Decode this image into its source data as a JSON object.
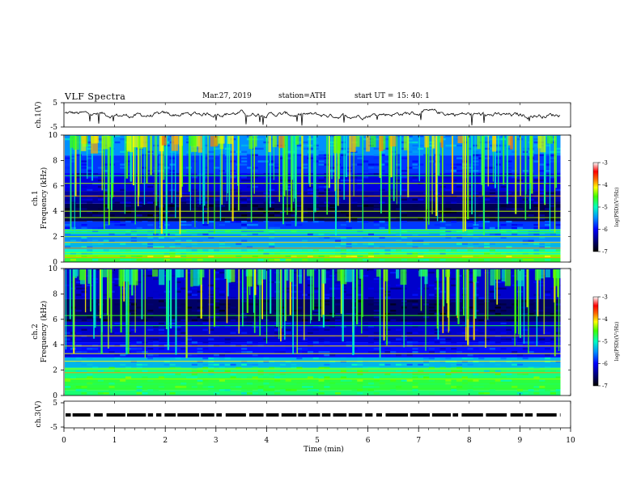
{
  "header": {
    "title": "VLF  Spectra",
    "date": "Mar.27, 2019",
    "station": "station=ATH",
    "start_label": "start  UT  =",
    "start_time": "15: 40: 1"
  },
  "colors": {
    "background": "#ffffff",
    "axis": "#000000",
    "colormap": [
      "#000000",
      "#00007a",
      "#0000ff",
      "#0070ff",
      "#00ccff",
      "#00ff80",
      "#80ff00",
      "#ffff00",
      "#ff8000",
      "#ff0000",
      "#ffffff"
    ]
  },
  "chart_data": [
    {
      "type": "line",
      "ylabel": "ch.1(V)",
      "ylim": [
        -5,
        5
      ],
      "yticks": [
        "5",
        "-5"
      ],
      "xlim": [
        0,
        10
      ],
      "mean_value": 0.2,
      "grid": false
    },
    {
      "type": "heatmap",
      "ylabel_lines": [
        "ch.1",
        "Frequency  (kHz)"
      ],
      "ylim": [
        0,
        10
      ],
      "yticks": [
        "0",
        "2",
        "4",
        "6",
        "8",
        "10"
      ],
      "xlim": [
        0,
        9.8
      ],
      "colorbar": {
        "label": "log(PSD)(V²/Hz)",
        "range": [
          -7,
          -3
        ],
        "ticks": [
          "-3",
          "-4",
          "-5",
          "-6",
          "-7"
        ]
      }
    },
    {
      "type": "heatmap",
      "ylabel_lines": [
        "ch.2",
        "Frequency  (kHz)"
      ],
      "ylim": [
        0,
        10
      ],
      "yticks": [
        "0",
        "2",
        "4",
        "6",
        "8",
        "10"
      ],
      "xlim": [
        0,
        9.8
      ],
      "colorbar": {
        "label": "log(PSD)(V²/Hz)",
        "range": [
          -7,
          -3
        ],
        "ticks": [
          "-3",
          "-4",
          "-5",
          "-6",
          "-7"
        ]
      }
    },
    {
      "type": "line",
      "ylabel": "ch.3(V)",
      "ylim": [
        -5,
        5
      ],
      "yticks": [
        "5",
        "-5"
      ],
      "xlim": [
        0,
        10
      ],
      "mean_value": 0,
      "grid": false
    }
  ],
  "xaxis": {
    "label": "Time  (min)",
    "range": [
      0,
      10
    ],
    "ticks": [
      "0",
      "1",
      "2",
      "3",
      "4",
      "5",
      "6",
      "7",
      "8",
      "9",
      "10"
    ]
  }
}
